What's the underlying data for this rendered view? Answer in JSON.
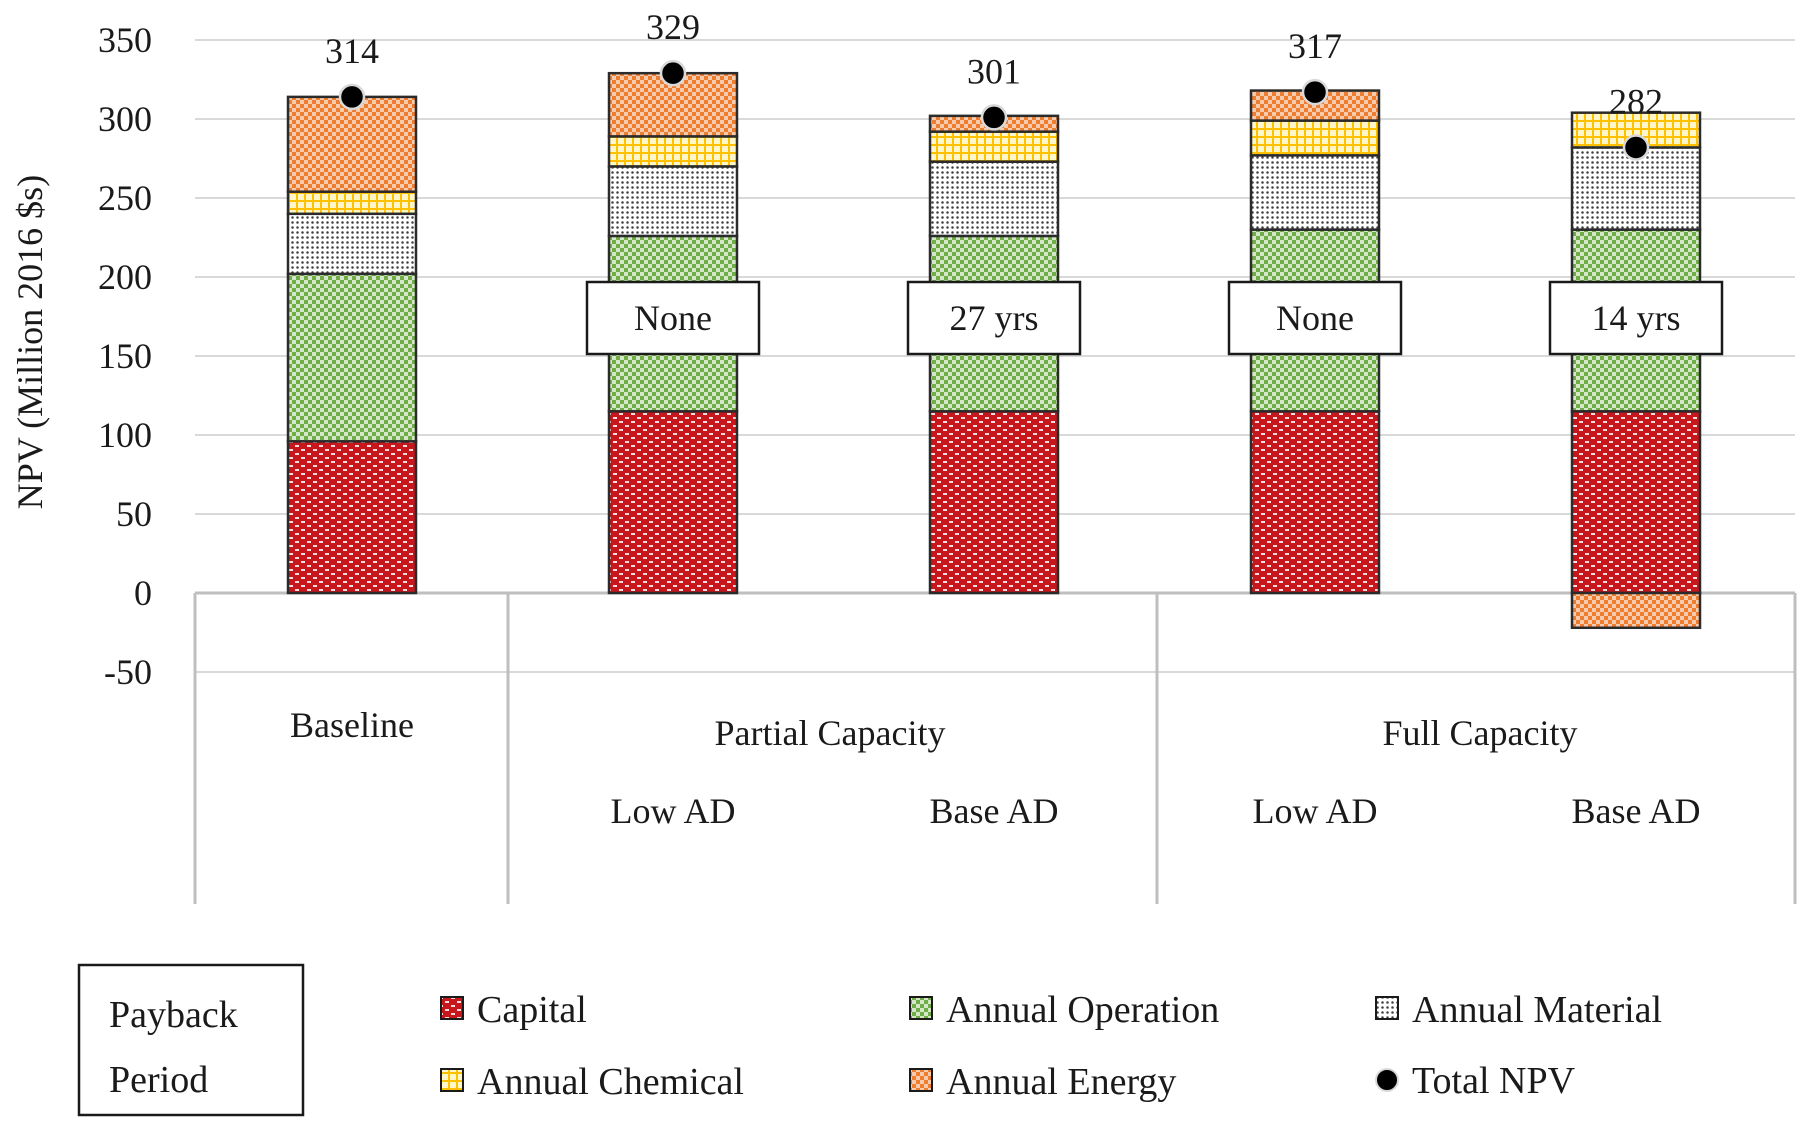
{
  "chart_data": {
    "type": "bar",
    "stacked": true,
    "title": "",
    "ylabel": "NPV (Million 2016 $s)",
    "xlabel": "",
    "ylim": [
      -50,
      350
    ],
    "yticks": [
      350,
      300,
      250,
      200,
      150,
      100,
      50,
      0,
      -50
    ],
    "grid": true,
    "categories": [
      "Baseline",
      "Low AD",
      "Base AD",
      "Low AD",
      "Base AD"
    ],
    "category_groups": [
      {
        "label": "Baseline",
        "members": [
          0
        ]
      },
      {
        "label": "Partial Capacity",
        "members": [
          1,
          2
        ]
      },
      {
        "label": "Full Capacity",
        "members": [
          3,
          4
        ]
      }
    ],
    "series": [
      {
        "name": "Capital",
        "values": [
          96,
          115,
          115,
          115,
          115
        ],
        "color": "#c8161d",
        "pattern": "bricks"
      },
      {
        "name": "Annual Operation",
        "values": [
          106,
          111,
          111,
          115,
          115
        ],
        "color": "#70ad47",
        "pattern": "checker"
      },
      {
        "name": "Annual Material",
        "values": [
          38,
          44,
          47,
          47,
          52
        ],
        "color": "#7f7f7f",
        "pattern": "dots"
      },
      {
        "name": "Annual Chemical",
        "values": [
          14,
          19,
          19,
          22,
          22
        ],
        "color": "#ffc000",
        "pattern": "grid"
      },
      {
        "name": "Annual Energy",
        "values": [
          60,
          40,
          10,
          19,
          -22
        ],
        "color": "#ed7d31",
        "pattern": "checker"
      }
    ],
    "total_npv": {
      "name": "Total NPV",
      "values": [
        314,
        329,
        301,
        317,
        282
      ],
      "labels": [
        "314",
        "329",
        "301",
        "317",
        "282"
      ]
    },
    "payback_period": {
      "name": "Payback Period",
      "legend_label_lines": [
        "Payback",
        "Period"
      ],
      "values": [
        "",
        "None",
        "27 yrs",
        "None",
        "14 yrs"
      ]
    },
    "legend": {
      "position": "bottom"
    }
  }
}
